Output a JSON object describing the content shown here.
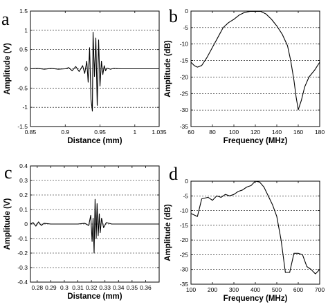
{
  "chart_data": [
    {
      "panel": "a",
      "type": "line",
      "xlabel": "Distance (mm)",
      "ylabel": "Amplitude (V)",
      "xlim": [
        0.85,
        1.035
      ],
      "ylim": [
        -1.5,
        1.5
      ],
      "xticks": [
        "0.85",
        "0.9",
        "0.95",
        "1",
        "1.035"
      ],
      "yticks": [
        "-1.5",
        "-1",
        "-0.5",
        "0",
        "0.5",
        "1",
        "1.5"
      ],
      "grid": "horizontal dashed",
      "x": [
        0.85,
        0.86,
        0.87,
        0.88,
        0.89,
        0.9,
        0.905,
        0.91,
        0.915,
        0.92,
        0.925,
        0.928,
        0.931,
        0.933,
        0.935,
        0.937,
        0.939,
        0.94,
        0.942,
        0.944,
        0.946,
        0.948,
        0.95,
        0.952,
        0.954,
        0.956,
        0.958,
        0.96,
        0.965,
        0.97,
        0.98,
        0.99,
        1.0,
        1.01,
        1.02,
        1.035
      ],
      "y": [
        0.0,
        0.01,
        -0.01,
        0.01,
        -0.01,
        0.0,
        0.03,
        -0.05,
        0.06,
        -0.07,
        0.08,
        -0.12,
        0.2,
        -0.35,
        0.55,
        -0.8,
        -1.1,
        0.95,
        -0.2,
        0.8,
        -0.95,
        0.75,
        -0.45,
        0.2,
        -0.15,
        0.08,
        -0.05,
        0.02,
        -0.01,
        0.01,
        0.0,
        0.0,
        0.0,
        0.0,
        0.0,
        0.0
      ]
    },
    {
      "panel": "b",
      "type": "line",
      "xlabel": "Frequency (MHz)",
      "ylabel": "Amplitude (dB)",
      "xlim": [
        60,
        180
      ],
      "ylim": [
        -35,
        0
      ],
      "xticks": [
        "60",
        "80",
        "100",
        "120",
        "140",
        "160",
        "180"
      ],
      "yticks": [
        "-35",
        "-30",
        "-25",
        "-20",
        "-15",
        "-10",
        "-5",
        "0"
      ],
      "grid": "horizontal dashed",
      "x": [
        60,
        63,
        66,
        70,
        75,
        80,
        85,
        90,
        95,
        100,
        105,
        110,
        115,
        120,
        125,
        130,
        135,
        140,
        145,
        150,
        153,
        156,
        158,
        160,
        163,
        166,
        170,
        175,
        180
      ],
      "y": [
        -15.5,
        -16.5,
        -17.0,
        -16.5,
        -14.0,
        -11.0,
        -8.0,
        -5.0,
        -3.5,
        -2.5,
        -1.2,
        -0.4,
        -0.1,
        -0.1,
        -0.1,
        -0.9,
        -2.5,
        -4.5,
        -7.0,
        -10.5,
        -15.0,
        -21.0,
        -26.0,
        -29.9,
        -27.0,
        -23.0,
        -20.0,
        -18.0,
        -15.5
      ]
    },
    {
      "panel": "c",
      "type": "line",
      "xlabel": "Distance (mm)",
      "ylabel": "Amplitude (V)",
      "xlim": [
        0.275,
        0.37
      ],
      "ylim": [
        -0.4,
        0.4
      ],
      "xticks": [
        "0.28",
        "0.29",
        "0.3",
        "0.31",
        "0.32",
        "0.33",
        "0.34",
        "0.35",
        "0.36"
      ],
      "yticks": [
        "-0.4",
        "-0.3",
        "-0.2",
        "-0.1",
        "0",
        "0.1",
        "0.2",
        "0.3",
        "0.4"
      ],
      "grid": "horizontal dashed",
      "x": [
        0.275,
        0.277,
        0.279,
        0.281,
        0.283,
        0.285,
        0.29,
        0.3,
        0.31,
        0.315,
        0.318,
        0.3195,
        0.3205,
        0.3212,
        0.322,
        0.3227,
        0.3235,
        0.3242,
        0.325,
        0.3258,
        0.3265,
        0.3275,
        0.329,
        0.331,
        0.335,
        0.34,
        0.35,
        0.36,
        0.37
      ],
      "y": [
        0.0,
        0.01,
        -0.015,
        0.015,
        -0.01,
        0.005,
        0.0,
        0.0,
        0.0,
        0.005,
        -0.01,
        0.06,
        -0.12,
        0.04,
        -0.2,
        0.17,
        -0.1,
        0.14,
        -0.08,
        0.07,
        -0.06,
        0.04,
        -0.025,
        0.01,
        0.0,
        0.0,
        0.0,
        0.0,
        0.0
      ]
    },
    {
      "panel": "d",
      "type": "line",
      "xlabel": "Frequency (MHz)",
      "ylabel": "Amplitude (dB)",
      "xlim": [
        100,
        700
      ],
      "ylim": [
        -35,
        0
      ],
      "xticks": [
        "100",
        "200",
        "300",
        "400",
        "500",
        "600",
        "700"
      ],
      "yticks": [
        "-35",
        "-30",
        "-25",
        "-20",
        "-15",
        "-10",
        "-5",
        "0"
      ],
      "grid": "horizontal dashed",
      "x": [
        100,
        130,
        150,
        180,
        200,
        220,
        240,
        260,
        280,
        300,
        320,
        340,
        360,
        380,
        400,
        420,
        440,
        460,
        480,
        500,
        520,
        540,
        560,
        580,
        600,
        620,
        640,
        660,
        680,
        700
      ],
      "y": [
        -11.0,
        -12.0,
        -6.0,
        -5.5,
        -6.5,
        -5.0,
        -5.5,
        -4.5,
        -5.0,
        -4.5,
        -3.5,
        -3.0,
        -2.0,
        -1.5,
        0.0,
        -0.3,
        -2.0,
        -5.0,
        -8.0,
        -12.0,
        -20.0,
        -31.0,
        -31.0,
        -24.5,
        -24.5,
        -25.0,
        -29.0,
        -30.0,
        -31.5,
        -30.0
      ]
    }
  ]
}
